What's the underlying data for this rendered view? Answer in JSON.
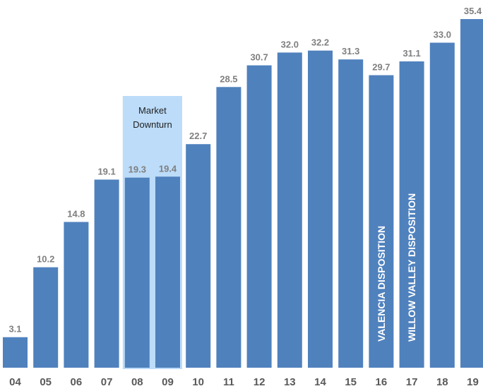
{
  "chart_data": {
    "type": "bar",
    "categories": [
      "04",
      "05",
      "06",
      "07",
      "08",
      "09",
      "10",
      "11",
      "12",
      "13",
      "14",
      "15",
      "16",
      "17",
      "18",
      "19"
    ],
    "values": [
      3.1,
      10.2,
      14.8,
      19.1,
      19.3,
      19.4,
      22.7,
      28.5,
      30.7,
      32.0,
      32.2,
      31.3,
      29.7,
      31.1,
      33.0,
      35.4
    ],
    "value_labels": [
      "3.1",
      "10.2",
      "14.8",
      "19.1",
      "19.3",
      "19.4",
      "22.7",
      "28.5",
      "30.7",
      "32.0",
      "32.2",
      "31.3",
      "29.7",
      "31.1",
      "33.0",
      "35.4"
    ],
    "ylim": [
      0,
      36.5
    ],
    "grid": false,
    "highlight_region": {
      "categories": [
        "08",
        "09"
      ],
      "label_lines": [
        "Market",
        "Downturn"
      ]
    },
    "bar_annotations": [
      {
        "category": "16",
        "text": "VALENCIA DISPOSITION"
      },
      {
        "category": "17",
        "text": "WILLOW VALLEY DISPOSITION"
      }
    ],
    "colors": {
      "bar": "#4f81bd",
      "highlight_fill": "#bcdcf9",
      "value_label": "#7f7f7f",
      "tick_label": "#595959",
      "annotation_text": "#ffffff"
    }
  }
}
